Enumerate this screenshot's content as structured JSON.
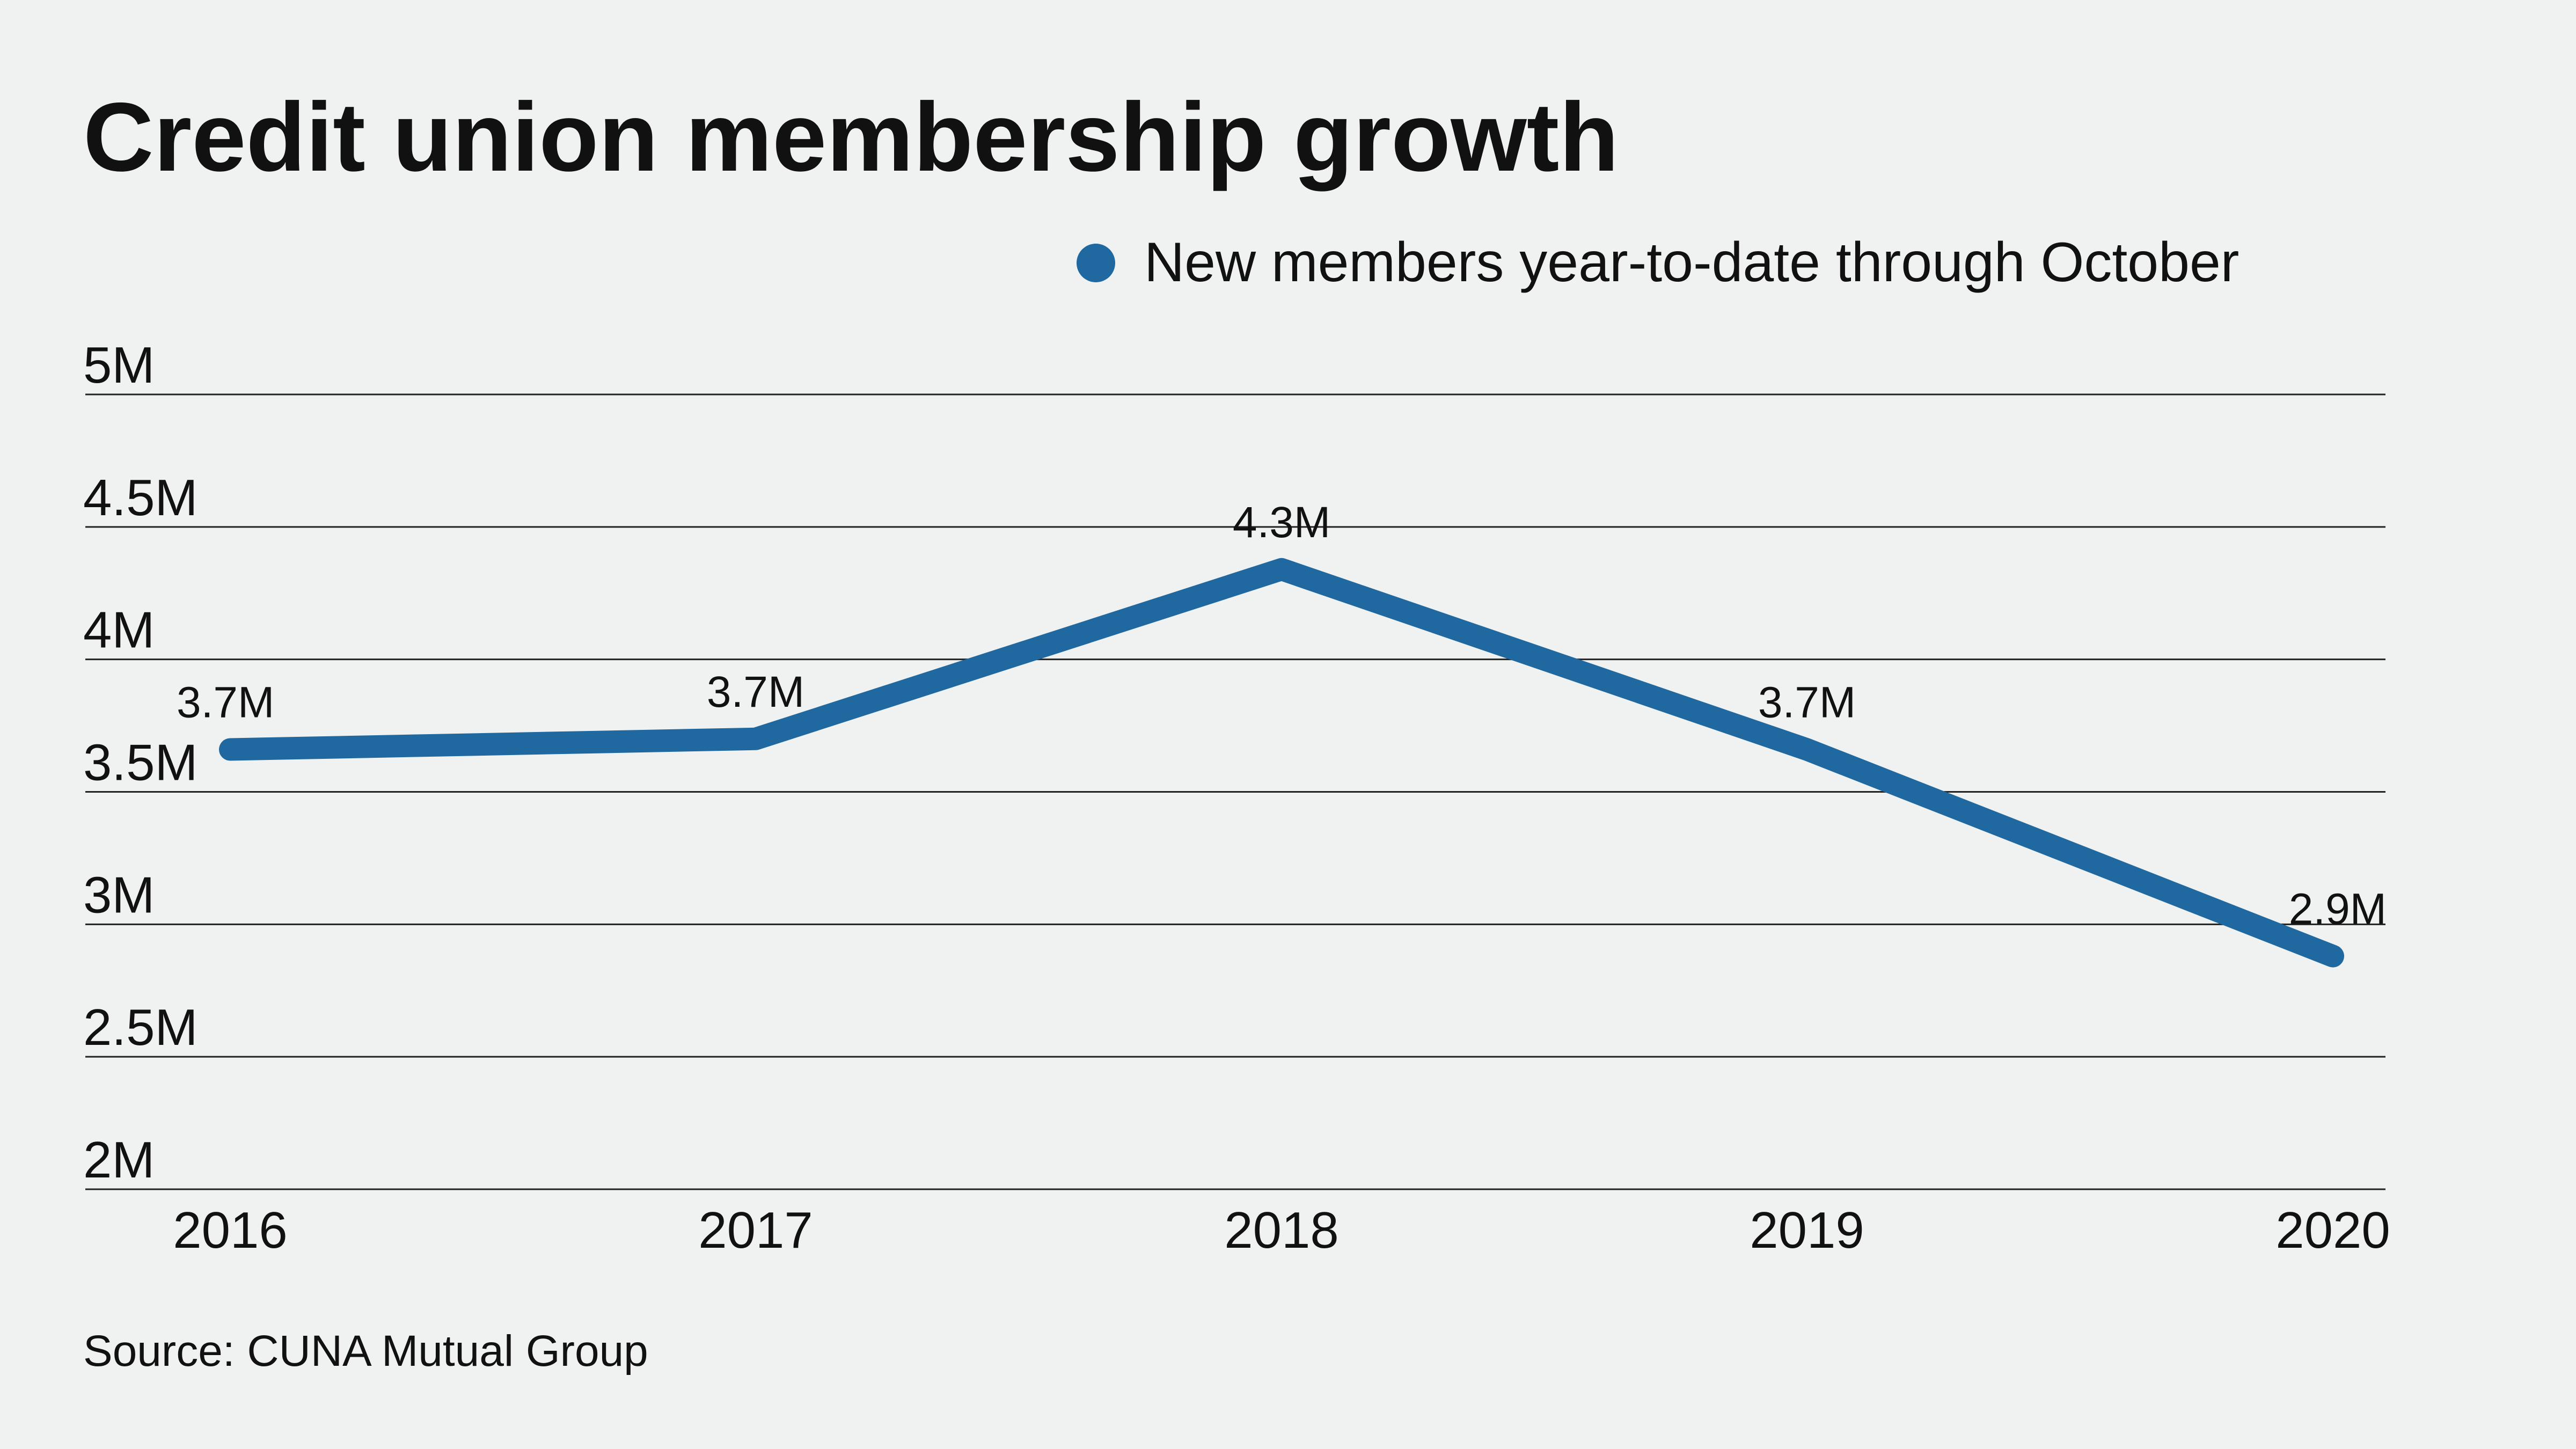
{
  "chart_data": {
    "type": "line",
    "title": "Credit union membership growth",
    "source": "Source: CUNA Mutual Group",
    "categories": [
      "2016",
      "2017",
      "2018",
      "2019",
      "2020"
    ],
    "series": [
      {
        "name": "New members year-to-date through October",
        "values": [
          3.66,
          3.7,
          4.34,
          3.66,
          2.88
        ],
        "labels": [
          "3.7M",
          "3.7M",
          "4.3M",
          "3.7M",
          "2.9M"
        ],
        "color": "#1f68a0"
      }
    ],
    "yticks": [
      {
        "value": 5,
        "label": "5M"
      },
      {
        "value": 4.5,
        "label": "4.5M"
      },
      {
        "value": 4,
        "label": "4M"
      },
      {
        "value": 3.5,
        "label": "3.5M"
      },
      {
        "value": 3,
        "label": "3M"
      },
      {
        "value": 2.5,
        "label": "2.5M"
      },
      {
        "value": 2,
        "label": "2M"
      }
    ],
    "ylim": [
      2,
      5
    ],
    "yunit": "M",
    "grid": true,
    "legend_position": "top-right",
    "background": "#f0f2f1"
  }
}
